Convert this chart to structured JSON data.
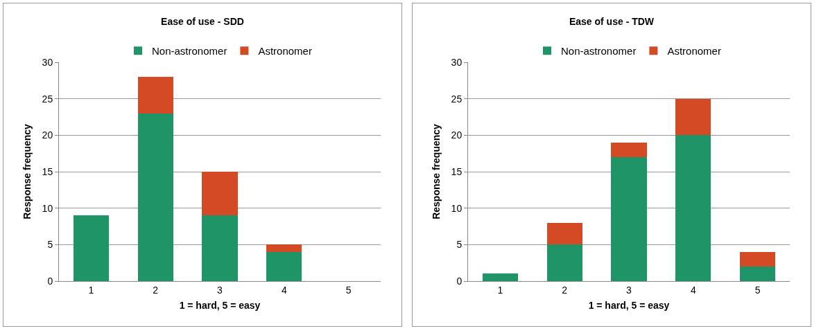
{
  "chart_data": [
    {
      "type": "bar",
      "title": "Ease of use - SDD",
      "xlabel": "1 = hard, 5 = easy",
      "ylabel": "Response frequency",
      "categories": [
        "1",
        "2",
        "3",
        "4",
        "5"
      ],
      "stacked": true,
      "legend": "top",
      "grid": "y",
      "ylim": [
        0,
        30
      ],
      "yticks": [
        0,
        5,
        10,
        15,
        20,
        25,
        30
      ],
      "series": [
        {
          "name": "Non-astronomer",
          "color": "#1f9467",
          "values": [
            9,
            23,
            9,
            4,
            0
          ]
        },
        {
          "name": "Astronomer",
          "color": "#d34a24",
          "values": [
            0,
            5,
            6,
            1,
            0
          ]
        }
      ]
    },
    {
      "type": "bar",
      "title": "Ease of use - TDW",
      "xlabel": "1 = hard, 5 = easy",
      "ylabel": "Response frequency",
      "categories": [
        "1",
        "2",
        "3",
        "4",
        "5"
      ],
      "stacked": true,
      "legend": "top",
      "grid": "y",
      "ylim": [
        0,
        30
      ],
      "yticks": [
        0,
        5,
        10,
        15,
        20,
        25,
        30
      ],
      "series": [
        {
          "name": "Non-astronomer",
          "color": "#1f9467",
          "values": [
            1,
            5,
            17,
            20,
            2
          ]
        },
        {
          "name": "Astronomer",
          "color": "#d34a24",
          "values": [
            0,
            3,
            2,
            5,
            2
          ]
        }
      ]
    }
  ]
}
